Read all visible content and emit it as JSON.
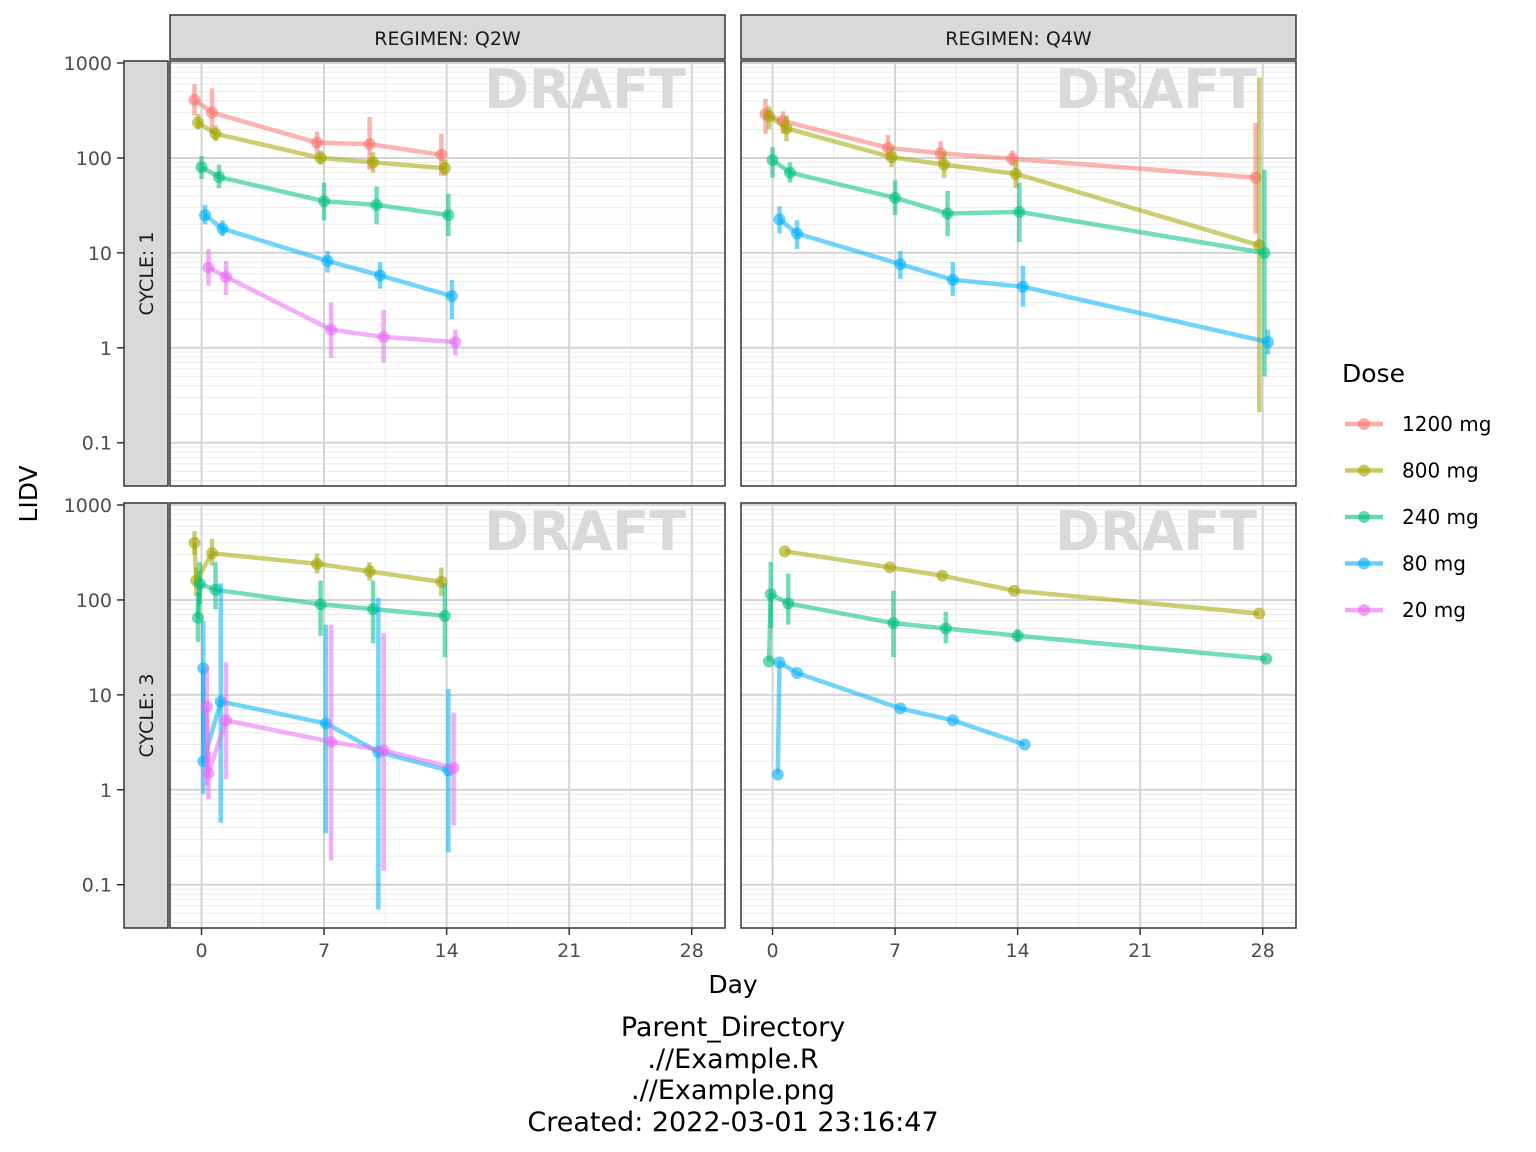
{
  "chart_data": {
    "type": "line",
    "x_axis": {
      "title": "Day",
      "ticks": [
        "0",
        "7",
        "14",
        "21",
        "28"
      ],
      "range": [
        -1.8,
        29.9
      ]
    },
    "y_axis": {
      "title": "LIDV",
      "scale": "log10",
      "ticks": [
        "0.1",
        "1",
        "10",
        "100",
        "1000"
      ],
      "range": [
        0.035,
        1050
      ]
    },
    "watermark": "DRAFT",
    "grid": true,
    "facets": {
      "columns": [
        {
          "label": "REGIMEN: Q2W"
        },
        {
          "label": "REGIMEN: Q4W"
        }
      ],
      "rows": [
        {
          "label": "CYCLE: 1"
        },
        {
          "label": "CYCLE: 3"
        }
      ]
    },
    "legend": {
      "title": "Dose",
      "position": "right",
      "items": [
        {
          "label": "1200 mg",
          "color": "#F8766D"
        },
        {
          "label": "800 mg",
          "color": "#A3A500"
        },
        {
          "label": "240 mg",
          "color": "#00BF7D"
        },
        {
          "label": "80 mg",
          "color": "#00B0F6"
        },
        {
          "label": "20 mg",
          "color": "#E76BF3"
        }
      ]
    },
    "panels": [
      {
        "regimen": "REGIMEN: Q2W",
        "cycle": "CYCLE: 1",
        "series": [
          {
            "name": "1200 mg",
            "points": [
              [
                -0.4,
                410,
                280,
                600
              ],
              [
                0.6,
                300,
                180,
                540
              ],
              [
                6.6,
                145,
                110,
                190
              ],
              [
                9.6,
                140,
                75,
                270
              ],
              [
                13.7,
                108,
                65,
                180
              ]
            ]
          },
          {
            "name": "800 mg",
            "points": [
              [
                -0.2,
                235,
                200,
                290
              ],
              [
                0.8,
                180,
                150,
                220
              ],
              [
                6.8,
                100,
                85,
                120
              ],
              [
                9.8,
                90,
                70,
                115
              ],
              [
                13.9,
                78,
                65,
                95
              ]
            ]
          },
          {
            "name": "240 mg",
            "points": [
              [
                0,
                80,
                60,
                105
              ],
              [
                1,
                63,
                48,
                85
              ],
              [
                7,
                35,
                22,
                55
              ],
              [
                10,
                32,
                20,
                50
              ],
              [
                14.1,
                25,
                15,
                42
              ]
            ]
          },
          {
            "name": "80 mg",
            "points": [
              [
                0.2,
                25,
                20,
                32
              ],
              [
                1.2,
                18,
                15,
                22
              ],
              [
                7.2,
                8.2,
                6.2,
                10.5
              ],
              [
                10.2,
                5.8,
                4.2,
                8
              ],
              [
                14.3,
                3.5,
                2,
                5.2
              ]
            ]
          },
          {
            "name": "20 mg",
            "points": [
              [
                0.4,
                7,
                4.5,
                11
              ],
              [
                1.4,
                5.6,
                3.6,
                8.2
              ],
              [
                7.4,
                1.55,
                0.78,
                3
              ],
              [
                10.4,
                1.3,
                0.7,
                2.5
              ],
              [
                14.5,
                1.15,
                0.83,
                1.55
              ]
            ]
          }
        ]
      },
      {
        "regimen": "REGIMEN: Q4W",
        "cycle": "CYCLE: 1",
        "series": [
          {
            "name": "1200 mg",
            "points": [
              [
                -0.4,
                290,
                180,
                420
              ],
              [
                0.6,
                245,
                180,
                310
              ],
              [
                6.6,
                128,
                95,
                175
              ],
              [
                9.6,
                112,
                85,
                150
              ],
              [
                13.7,
                98,
                82,
                120
              ],
              [
                27.6,
                62,
                16,
                235
              ]
            ]
          },
          {
            "name": "800 mg",
            "points": [
              [
                -0.2,
                275,
                200,
                350
              ],
              [
                0.8,
                205,
                150,
                280
              ],
              [
                6.8,
                102,
                80,
                130
              ],
              [
                9.8,
                85,
                62,
                115
              ],
              [
                13.9,
                68,
                48,
                95
              ],
              [
                27.8,
                12,
                0.21,
                700
              ]
            ]
          },
          {
            "name": "240 mg",
            "points": [
              [
                0,
                95,
                62,
                130
              ],
              [
                1,
                70,
                55,
                90
              ],
              [
                7,
                38,
                25,
                58
              ],
              [
                10,
                26,
                15,
                45
              ],
              [
                14.1,
                27,
                13,
                55
              ],
              [
                28.1,
                10,
                0.5,
                75
              ]
            ]
          },
          {
            "name": "80 mg",
            "points": [
              [
                0.4,
                22.5,
                16,
                31
              ],
              [
                1.4,
                16,
                11,
                22
              ],
              [
                7.3,
                7.6,
                5.3,
                10.5
              ],
              [
                10.3,
                5.2,
                3.5,
                8
              ],
              [
                14.3,
                4.4,
                2.7,
                7.3
              ],
              [
                28.3,
                1.15,
                0.85,
                1.55
              ]
            ]
          }
        ]
      },
      {
        "regimen": "REGIMEN: Q2W",
        "cycle": "CYCLE: 3",
        "series": [
          {
            "name": "800 mg",
            "points": [
              [
                -0.4,
                400,
                300,
                530
              ],
              [
                -0.3,
                160,
                110,
                220
              ],
              [
                0.6,
                310,
                230,
                440
              ],
              [
                6.6,
                240,
                190,
                310
              ],
              [
                9.6,
                200,
                160,
                250
              ],
              [
                13.7,
                155,
                110,
                220
              ]
            ]
          },
          {
            "name": "240 mg",
            "points": [
              [
                -0.2,
                65,
                36,
                120
              ],
              [
                -0.1,
                148,
                90,
                250
              ],
              [
                0.8,
                128,
                80,
                250
              ],
              [
                6.8,
                90,
                42,
                160
              ],
              [
                9.8,
                80,
                35,
                160
              ],
              [
                13.9,
                68,
                25,
                150
              ]
            ]
          },
          {
            "name": "80 mg",
            "points": [
              [
                0.1,
                19,
                3,
                60
              ],
              [
                0.1,
                2,
                0.9,
                3
              ],
              [
                1.1,
                8.5,
                0.45,
                150
              ],
              [
                7.1,
                5,
                0.35,
                55
              ],
              [
                10.1,
                2.5,
                0.055,
                105
              ],
              [
                14.1,
                1.6,
                0.22,
                11.5
              ]
            ]
          },
          {
            "name": "20 mg",
            "points": [
              [
                0.3,
                7.5,
                1.1,
                20
              ],
              [
                0.4,
                1.5,
                0.8,
                2.5
              ],
              [
                1.4,
                5.4,
                1.3,
                22
              ],
              [
                7.4,
                3.2,
                0.18,
                55
              ],
              [
                10.4,
                2.6,
                0.14,
                45
              ],
              [
                14.4,
                1.7,
                0.42,
                6.5
              ]
            ]
          }
        ]
      },
      {
        "regimen": "REGIMEN: Q4W",
        "cycle": "CYCLE: 3",
        "series": [
          {
            "name": "800 mg",
            "points": [
              [
                0.7,
                325,
                null,
                null
              ],
              [
                6.7,
                220,
                null,
                null
              ],
              [
                9.7,
                180,
                null,
                null
              ],
              [
                13.8,
                125,
                null,
                null
              ],
              [
                27.8,
                72,
                null,
                null
              ]
            ]
          },
          {
            "name": "240 mg",
            "points": [
              [
                -0.2,
                22.5,
                null,
                null
              ],
              [
                -0.1,
                115,
                50,
                250
              ],
              [
                0.9,
                92,
                55,
                190
              ],
              [
                6.9,
                57,
                25,
                125
              ],
              [
                9.9,
                50,
                35,
                75
              ],
              [
                14,
                42,
                36,
                49
              ],
              [
                28.2,
                24,
                null,
                null
              ]
            ]
          },
          {
            "name": "80 mg",
            "points": [
              [
                0.3,
                1.45,
                null,
                null
              ],
              [
                0.4,
                22,
                null,
                null
              ],
              [
                1.4,
                17,
                null,
                null
              ],
              [
                7.3,
                7.2,
                null,
                null
              ],
              [
                10.3,
                5.4,
                null,
                null
              ],
              [
                14.4,
                3,
                null,
                null
              ]
            ]
          }
        ]
      }
    ]
  },
  "caption": {
    "line1": "Parent_Directory",
    "line2": ".//Example.R",
    "line3": ".//Example.png",
    "line4": "Created: 2022-03-01 23:16:47"
  }
}
